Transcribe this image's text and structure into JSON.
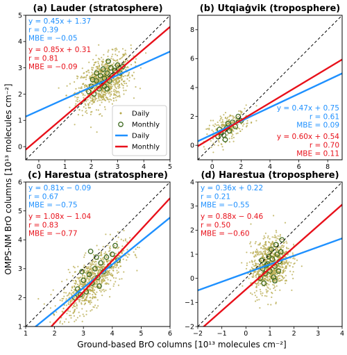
{
  "figure": {
    "xlabel": "Ground-based BrO columns [10¹³ molecules cm⁻²]",
    "ylabel": "OMPS-NM BrO columns [10¹³ molecules cm⁻²]",
    "colors": {
      "daily": "#1e90ff",
      "monthly": "#e8101a",
      "daily_points": "#b5a84a",
      "monthly_markers": "#3f6b22",
      "one_to_one": "#000000"
    }
  },
  "legend": {
    "location": "lower-right of panel (a)",
    "entries": [
      "Daily",
      "Monthly",
      "Daily",
      "Monthly"
    ]
  },
  "chart_data": [
    {
      "type": "scatter",
      "title": "(a) Lauder (stratosphere)",
      "xlim": [
        -0.5,
        5
      ],
      "ylim": [
        -0.5,
        5
      ],
      "xticks": [
        0,
        1,
        2,
        3,
        4,
        5
      ],
      "yticks": [
        0,
        1,
        2,
        3,
        4,
        5
      ],
      "stats_position": "top-left",
      "daily_fit": {
        "slope": 0.45,
        "intercept": 1.37
      },
      "monthly_fit": {
        "slope": 0.85,
        "intercept": 0.31
      },
      "daily_stats": [
        "y = 0.45x + 1.37",
        "r = 0.39",
        "MBE = −0.05"
      ],
      "monthly_stats": [
        "y = 0.85x + 0.31",
        "r = 0.81",
        "MBE = −0.09"
      ],
      "daily_cloud": {
        "x_mean": 2.5,
        "x_sd": 0.5,
        "y_sd": 0.45,
        "n": 900
      },
      "monthly_points": [
        [
          1.9,
          2.1
        ],
        [
          2.0,
          2.3
        ],
        [
          2.1,
          2.0
        ],
        [
          2.2,
          2.5
        ],
        [
          2.3,
          2.2
        ],
        [
          2.35,
          2.7
        ],
        [
          2.4,
          2.4
        ],
        [
          2.5,
          2.6
        ],
        [
          2.5,
          2.3
        ],
        [
          2.6,
          2.8
        ],
        [
          2.7,
          2.5
        ],
        [
          2.75,
          3.0
        ],
        [
          2.8,
          2.7
        ],
        [
          2.9,
          2.9
        ],
        [
          3.0,
          3.1
        ],
        [
          3.1,
          2.8
        ],
        [
          2.2,
          2.8
        ],
        [
          2.45,
          2.95
        ],
        [
          2.6,
          2.2
        ],
        [
          3.2,
          3.05
        ],
        [
          2.05,
          2.55
        ],
        [
          2.65,
          3.25
        ]
      ]
    },
    {
      "type": "scatter",
      "title": "(b) Utqiaġvik (troposphere)",
      "xlim": [
        -1,
        9
      ],
      "ylim": [
        -1,
        9
      ],
      "xticks": [
        0,
        2,
        4,
        6,
        8
      ],
      "yticks": [
        0,
        2,
        4,
        6,
        8
      ],
      "stats_position": "right",
      "daily_fit": {
        "slope": 0.47,
        "intercept": 0.75
      },
      "monthly_fit": {
        "slope": 0.6,
        "intercept": 0.54
      },
      "daily_stats": [
        "y = 0.47x + 0.75",
        "r = 0.61",
        "MBE = 0.09"
      ],
      "monthly_stats": [
        "y = 0.60x + 0.54",
        "r = 0.70",
        "MBE = 0.11"
      ],
      "daily_cloud": {
        "x_mean": 1.1,
        "x_sd": 0.75,
        "y_sd": 0.45,
        "n": 230
      },
      "monthly_points": [
        [
          0.4,
          0.6
        ],
        [
          0.6,
          0.9
        ],
        [
          0.8,
          0.7
        ],
        [
          1.0,
          1.2
        ],
        [
          1.2,
          1.0
        ],
        [
          1.4,
          1.6
        ],
        [
          1.6,
          1.3
        ],
        [
          1.8,
          2.0
        ],
        [
          2.0,
          1.7
        ],
        [
          0.9,
          0.4
        ],
        [
          1.1,
          1.5
        ],
        [
          0.5,
          1.1
        ]
      ]
    },
    {
      "type": "scatter",
      "title": "(c) Harestua (stratosphere)",
      "xlim": [
        1,
        6
      ],
      "ylim": [
        1,
        6
      ],
      "xticks": [
        1,
        2,
        3,
        4,
        5,
        6
      ],
      "yticks": [
        1,
        2,
        3,
        4,
        5,
        6
      ],
      "stats_position": "top-left",
      "daily_fit": {
        "slope": 0.81,
        "intercept": -0.09
      },
      "monthly_fit": {
        "slope": 1.08,
        "intercept": -1.04
      },
      "daily_stats": [
        "y = 0.81x − 0.09",
        "r = 0.67",
        "MBE = −0.75"
      ],
      "monthly_stats": [
        "y = 1.08x − 1.04",
        "r = 0.83",
        "MBE = −0.77"
      ],
      "daily_cloud": {
        "x_mean": 3.3,
        "x_sd": 0.55,
        "y_sd": 0.42,
        "n": 800
      },
      "monthly_points": [
        [
          2.7,
          2.0
        ],
        [
          2.8,
          2.3
        ],
        [
          2.9,
          2.1
        ],
        [
          3.0,
          2.6
        ],
        [
          3.1,
          2.2
        ],
        [
          3.2,
          2.8
        ],
        [
          3.3,
          2.5
        ],
        [
          3.4,
          3.0
        ],
        [
          3.5,
          2.7
        ],
        [
          3.6,
          3.2
        ],
        [
          3.7,
          2.9
        ],
        [
          3.8,
          3.4
        ],
        [
          3.9,
          3.1
        ],
        [
          4.0,
          3.5
        ],
        [
          4.2,
          3.3
        ],
        [
          3.25,
          3.6
        ],
        [
          2.95,
          2.9
        ],
        [
          3.55,
          2.4
        ],
        [
          4.1,
          3.8
        ],
        [
          3.45,
          3.4
        ]
      ]
    },
    {
      "type": "scatter",
      "title": "(d) Harestua (troposphere)",
      "xlim": [
        -2,
        4
      ],
      "ylim": [
        -2,
        4
      ],
      "xticks": [
        -2,
        -1,
        0,
        1,
        2,
        3,
        4
      ],
      "yticks": [
        -2,
        -1,
        0,
        1,
        2,
        3,
        4
      ],
      "stats_position": "top-left",
      "daily_fit": {
        "slope": 0.36,
        "intercept": 0.22
      },
      "monthly_fit": {
        "slope": 0.88,
        "intercept": -0.46
      },
      "daily_stats": [
        "y = 0.36x + 0.22",
        "r = 0.21",
        "MBE = −0.55"
      ],
      "monthly_stats": [
        "y = 0.88x − 0.46",
        "r = 0.50",
        "MBE = −0.60"
      ],
      "daily_cloud": {
        "x_mean": 1.0,
        "x_sd": 0.4,
        "y_sd": 0.55,
        "n": 850
      },
      "monthly_points": [
        [
          0.6,
          0.0
        ],
        [
          0.7,
          0.4
        ],
        [
          0.8,
          0.2
        ],
        [
          0.9,
          0.6
        ],
        [
          1.0,
          0.3
        ],
        [
          1.1,
          0.8
        ],
        [
          1.2,
          0.5
        ],
        [
          1.3,
          1.0
        ],
        [
          1.4,
          0.7
        ],
        [
          0.75,
          -0.2
        ],
        [
          1.05,
          1.2
        ],
        [
          1.25,
          1.4
        ],
        [
          0.95,
          0.9
        ],
        [
          1.35,
          0.3
        ],
        [
          0.85,
          0.55
        ],
        [
          1.15,
          0.05
        ],
        [
          1.45,
          1.1
        ],
        [
          1.5,
          1.6
        ],
        [
          0.65,
          0.75
        ],
        [
          1.2,
          -0.1
        ]
      ]
    }
  ]
}
